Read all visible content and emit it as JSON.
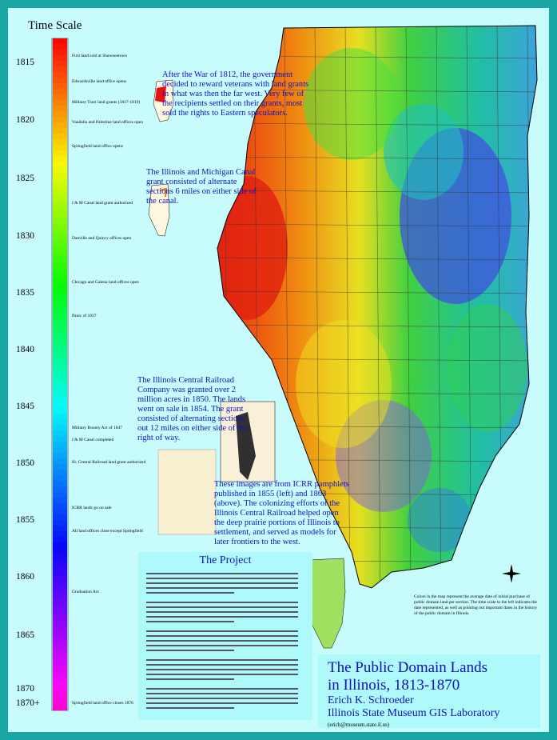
{
  "time_scale": {
    "title": "Time Scale",
    "years": [
      "1815",
      "1820",
      "1825",
      "1830",
      "1835",
      "1840",
      "1845",
      "1850",
      "1855",
      "1860",
      "1865",
      "1870",
      "1870+"
    ],
    "events": [
      "First land sold at Shawneetown",
      "Edwardsville land office opens",
      "Military Tract land grants (1817-1819)",
      "Vandalia and Palestine land offices open",
      "Springfield land office opens",
      "I & M Canal land grant authorized",
      "Danville and Quincy offices open",
      "Chicago and Galena land offices open",
      "Panic of 1837",
      "Military Bounty Act of 1847",
      "I & M Canal completed",
      "Ill. Central Railroad land grant authorized",
      "ICRR lands go on sale",
      "All land offices close except Springfield",
      "Graduation Act",
      "Springfield land office closes 1876"
    ]
  },
  "annotations": {
    "military_tract": "After the War of 1812, the government decided to reward veterans with land grants in what was then the far west. Very few of the recipients settled on their grants, most sold the rights to Eastern speculators.",
    "canal": "The Illinois and Michigan Canal grant consisted of alternate sections 6 miles on either side of the canal.",
    "railroad": "The Illinois Central Railroad Company was granted over 2 million acres in 1850. The lands went on sale in 1854. The grant consisted of alternating sections out 12 miles on either side of the right of way.",
    "images": "These images are from ICRR pamphlets published in 1855 (left) and 1863 (above). The colonizing efforts of the Illinois Central Railroad helped open the deep prairie portions of Illinois to settlement, and served as models for later frontiers to the west.",
    "legend_note": "Colors in the map represent the average date of initial purchase of public domain land per section. The time scale to the left indicates the date represented, as well as pointing out important dates in the history of the public domain in Illinois."
  },
  "project": {
    "title": "The Project"
  },
  "header": {
    "title_line1": "The Public Domain Lands",
    "title_line2": "in Illinois, 1813-1870",
    "author": "Erich K. Schroeder",
    "affiliation": "Illinois State Museum GIS Laboratory",
    "email": "(erich@museum.state.il.us)"
  }
}
